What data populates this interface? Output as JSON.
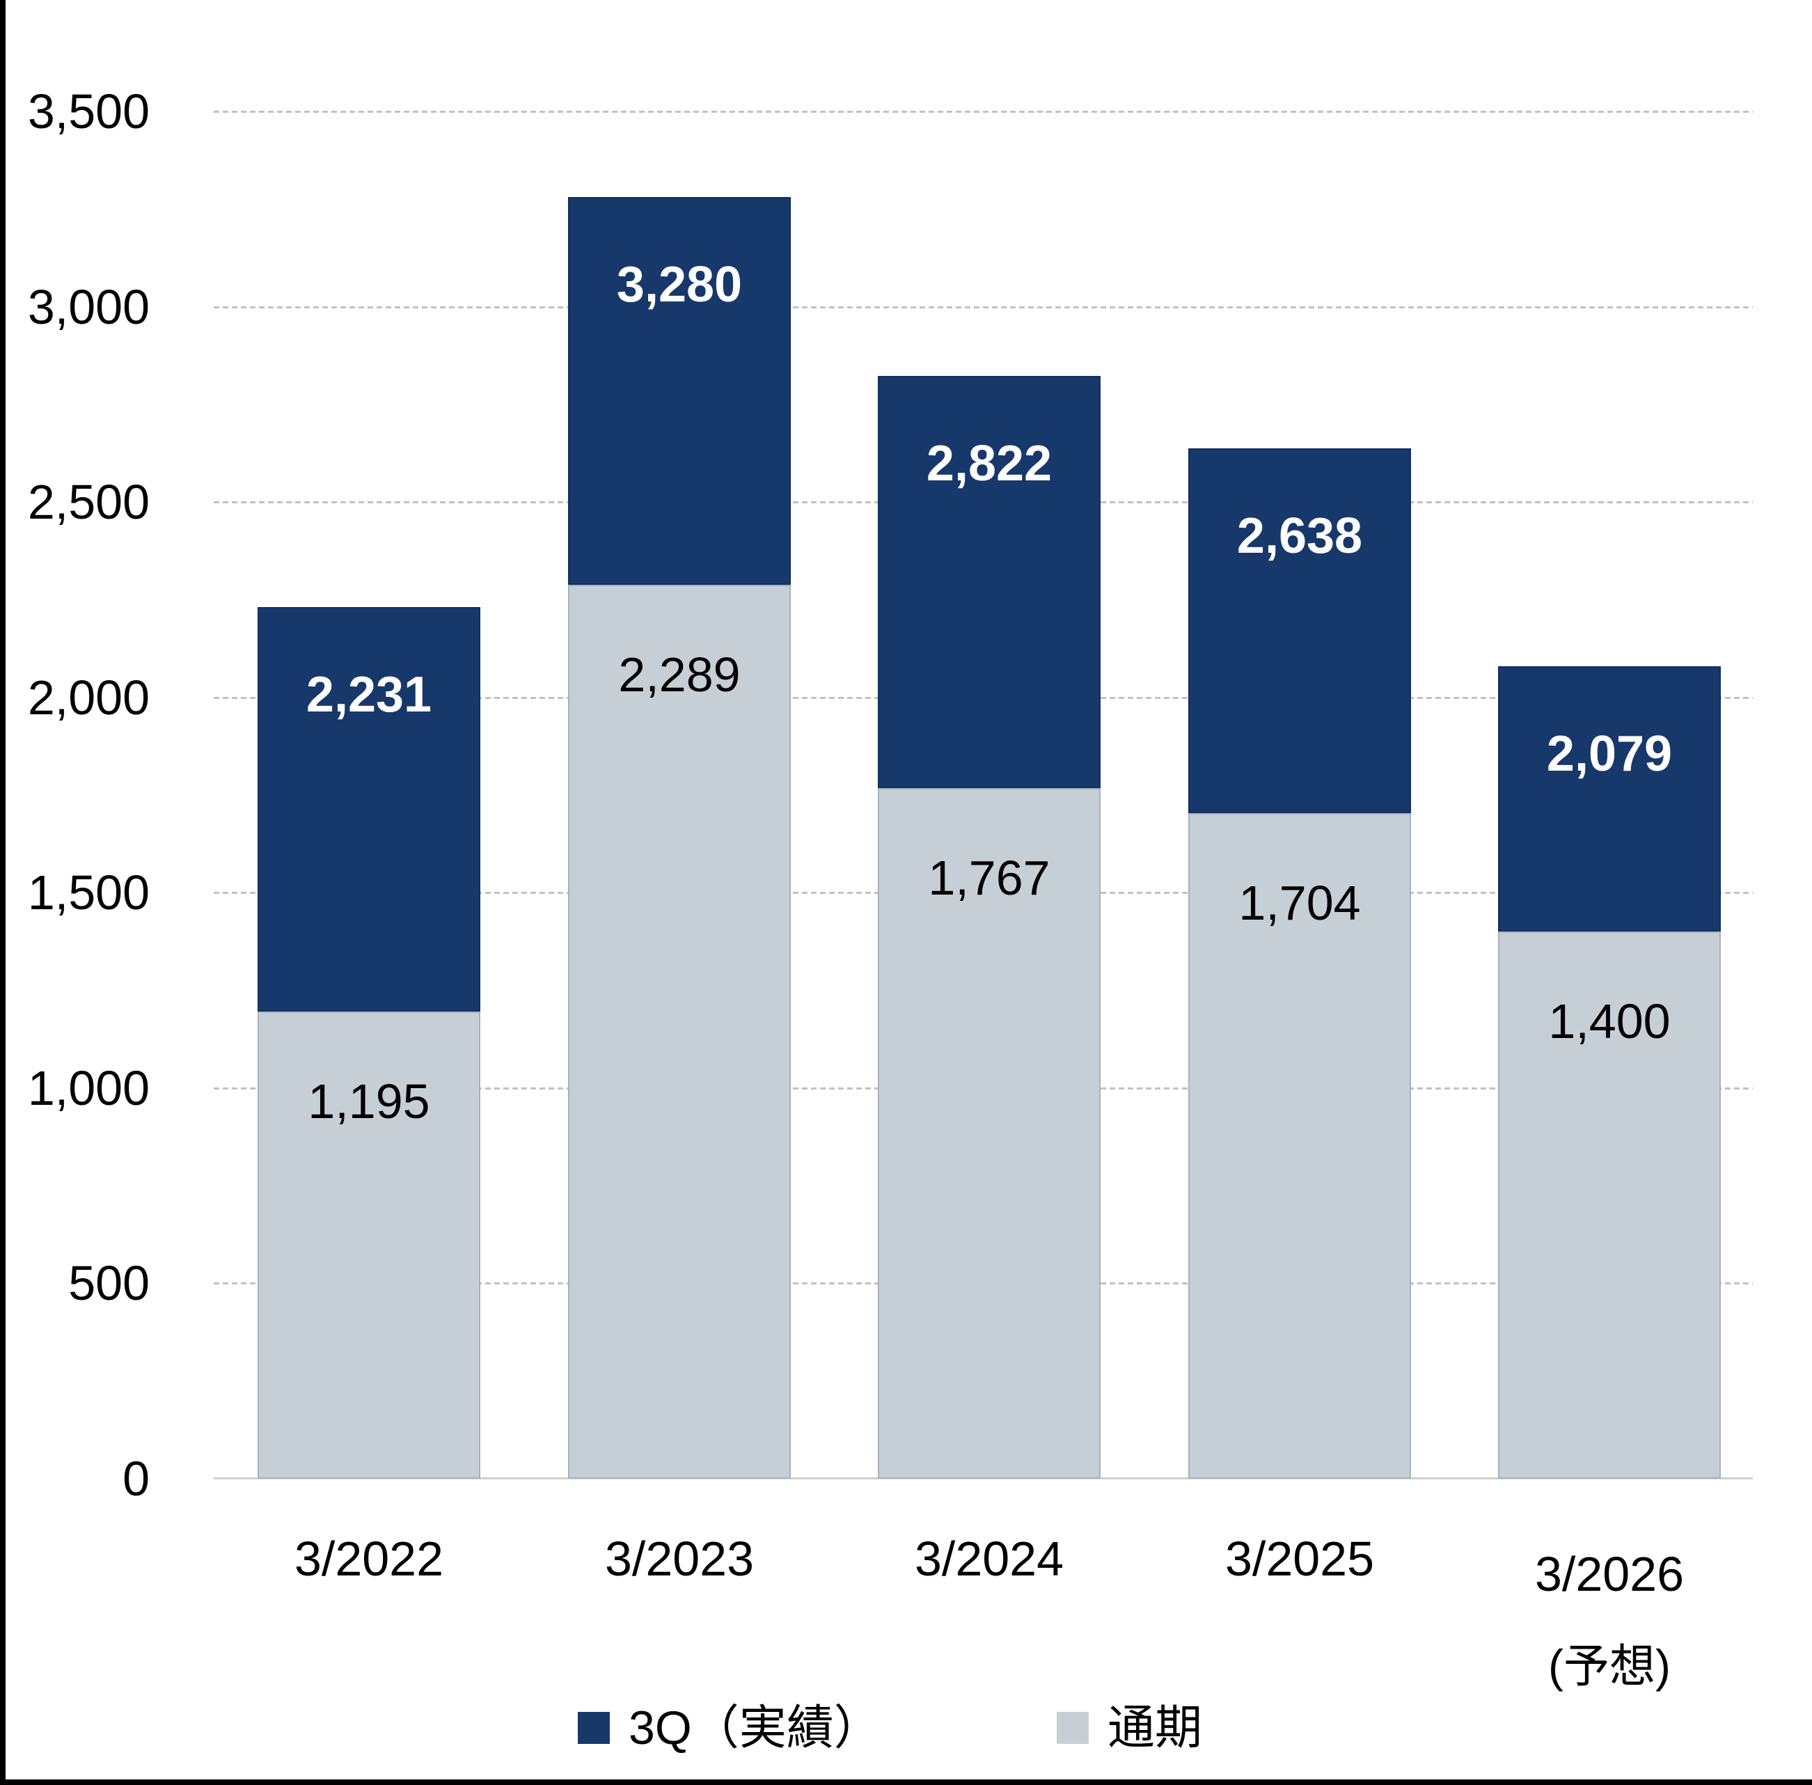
{
  "yaxis": {
    "ticks": [
      {
        "label": "0",
        "value": 0
      },
      {
        "label": "500",
        "value": 500
      },
      {
        "label": "1,000",
        "value": 1000
      },
      {
        "label": "1,500",
        "value": 1500
      },
      {
        "label": "2,000",
        "value": 2000
      },
      {
        "label": "2,500",
        "value": 2500
      },
      {
        "label": "3,000",
        "value": 3000
      },
      {
        "label": "3,500",
        "value": 3500
      }
    ]
  },
  "bars": [
    {
      "category": "3/2022",
      "category_note": "",
      "total_label": "2,231",
      "base_label": "1,195"
    },
    {
      "category": "3/2023",
      "category_note": "",
      "total_label": "3,280",
      "base_label": "2,289"
    },
    {
      "category": "3/2024",
      "category_note": "",
      "total_label": "2,822",
      "base_label": "1,767"
    },
    {
      "category": "3/2025",
      "category_note": "",
      "total_label": "2,638",
      "base_label": "1,704"
    },
    {
      "category": "3/2026",
      "category_note": "(予想)",
      "total_label": "2,079",
      "base_label": "1,400"
    }
  ],
  "legend": {
    "items": [
      {
        "label": "3Q（実績）",
        "color": "#17386B"
      },
      {
        "label": "通期",
        "color": "#C7CFD6"
      }
    ]
  },
  "colors": {
    "bar_blue": "#17386B",
    "bar_gray": "#C7CFD6",
    "gridline": "#C2C2C2",
    "axis_line": "#D0D0D0",
    "border": "#000000"
  },
  "chart_data": {
    "type": "bar",
    "subtype": "stacked",
    "categories": [
      "3/2022",
      "3/2023",
      "3/2024",
      "3/2025",
      "3/2026 (予想)"
    ],
    "series": [
      {
        "name": "通期",
        "color": "#C7CFD6",
        "values": [
          1195,
          2289,
          1767,
          1704,
          1400
        ]
      },
      {
        "name": "3Q（実績）",
        "color": "#17386B",
        "bar_top_values": [
          2231,
          3280,
          2822,
          2638,
          2079
        ],
        "segment_values": [
          1036,
          991,
          1055,
          934,
          679
        ],
        "note": "dark navy segment drawn from the 通期 value up to the bar-top value; its data label shows the bar-top value"
      }
    ],
    "title": "",
    "xlabel": "",
    "ylabel": "",
    "ylim": [
      0,
      3500
    ],
    "ytick_interval": 500,
    "grid": "dashed horizontal",
    "legend_position": "bottom"
  }
}
